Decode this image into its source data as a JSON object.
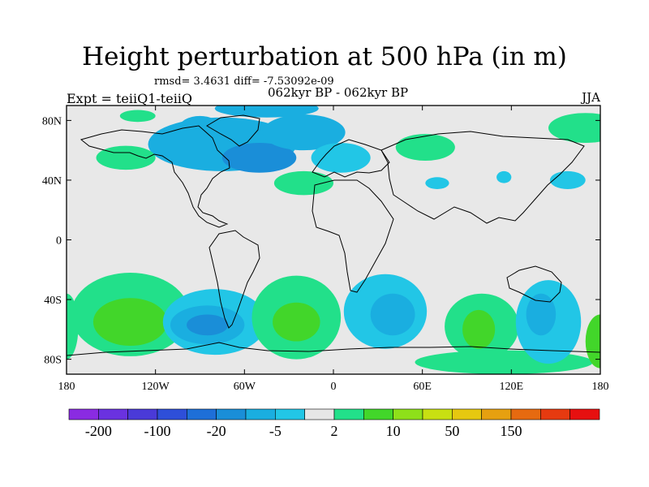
{
  "chart_data": {
    "type": "heatmap",
    "title": "Height perturbation at 500 hPa (in m)",
    "stats_line": "rmsd= 3.4631 diff= -7.53092e-09",
    "left_label": "Expt = teiiQ1-teiiQ",
    "center_label": "062kyr BP - 062kyr BP",
    "right_label": "JJA",
    "x_ticks": [
      "180",
      "120W",
      "60W",
      "0",
      "60E",
      "120E",
      "180"
    ],
    "y_ticks": [
      "80N",
      "40N",
      "0",
      "40S",
      "80S"
    ],
    "colorbar": {
      "colors": [
        "#8a2be2",
        "#6a32e0",
        "#4a3ad8",
        "#2e4fd9",
        "#1e6fd8",
        "#1a8ed8",
        "#1aaee0",
        "#22c6e6",
        "#e6e6e6",
        "#22e08a",
        "#42d62a",
        "#8ee01a",
        "#c8e012",
        "#e6c810",
        "#e6a010",
        "#e66a10",
        "#e63a10",
        "#e61010"
      ],
      "labels": [
        "-200",
        "-100",
        "-20",
        "-5",
        "2",
        "10",
        "50",
        "150"
      ]
    },
    "regions": [
      {
        "lon": -45,
        "lat": 88,
        "rx": 35,
        "ry": 6,
        "level": 6
      },
      {
        "lon": -75,
        "lat": 64,
        "rx": 50,
        "ry": 18,
        "level": 6
      },
      {
        "lon": -50,
        "lat": 55,
        "rx": 25,
        "ry": 10,
        "level": 5
      },
      {
        "lon": -20,
        "lat": 72,
        "rx": 28,
        "ry": 12,
        "level": 6
      },
      {
        "lon": 5,
        "lat": 55,
        "rx": 20,
        "ry": 10,
        "level": 7
      },
      {
        "lon": -20,
        "lat": 38,
        "rx": 20,
        "ry": 8,
        "level": 9
      },
      {
        "lon": -90,
        "lat": 75,
        "rx": 14,
        "ry": 8,
        "level": 6
      },
      {
        "lon": -140,
        "lat": 55,
        "rx": 20,
        "ry": 8,
        "level": 9
      },
      {
        "lon": -132,
        "lat": 83,
        "rx": 12,
        "ry": 4,
        "level": 9
      },
      {
        "lon": 62,
        "lat": 62,
        "rx": 20,
        "ry": 9,
        "level": 9
      },
      {
        "lon": 170,
        "lat": 75,
        "rx": 25,
        "ry": 10,
        "level": 9
      },
      {
        "lon": 70,
        "lat": 38,
        "rx": 8,
        "ry": 4,
        "level": 7
      },
      {
        "lon": 115,
        "lat": 42,
        "rx": 5,
        "ry": 4,
        "level": 7
      },
      {
        "lon": 158,
        "lat": 40,
        "rx": 12,
        "ry": 6,
        "level": 7
      },
      {
        "lon": -137,
        "lat": -50,
        "rx": 40,
        "ry": 28,
        "level": 9
      },
      {
        "lon": -137,
        "lat": -55,
        "rx": 25,
        "ry": 16,
        "level": 10
      },
      {
        "lon": -80,
        "lat": -55,
        "rx": 35,
        "ry": 22,
        "level": 7
      },
      {
        "lon": -85,
        "lat": -57,
        "rx": 25,
        "ry": 13,
        "level": 6
      },
      {
        "lon": -85,
        "lat": -57,
        "rx": 14,
        "ry": 7,
        "level": 5
      },
      {
        "lon": -25,
        "lat": -52,
        "rx": 30,
        "ry": 28,
        "level": 9
      },
      {
        "lon": -25,
        "lat": -55,
        "rx": 16,
        "ry": 13,
        "level": 10
      },
      {
        "lon": 35,
        "lat": -48,
        "rx": 28,
        "ry": 25,
        "level": 7
      },
      {
        "lon": 40,
        "lat": -50,
        "rx": 15,
        "ry": 14,
        "level": 6
      },
      {
        "lon": 100,
        "lat": -58,
        "rx": 25,
        "ry": 22,
        "level": 9
      },
      {
        "lon": 98,
        "lat": -60,
        "rx": 11,
        "ry": 13,
        "level": 10
      },
      {
        "lon": 115,
        "lat": -82,
        "rx": 60,
        "ry": 8,
        "level": 9
      },
      {
        "lon": 145,
        "lat": -55,
        "rx": 22,
        "ry": 28,
        "level": 7
      },
      {
        "lon": 140,
        "lat": -50,
        "rx": 10,
        "ry": 14,
        "level": 6
      },
      {
        "lon": 180,
        "lat": -68,
        "rx": 10,
        "ry": 18,
        "level": 10
      },
      {
        "lon": -180,
        "lat": -58,
        "rx": 8,
        "ry": 22,
        "level": 9
      }
    ]
  }
}
